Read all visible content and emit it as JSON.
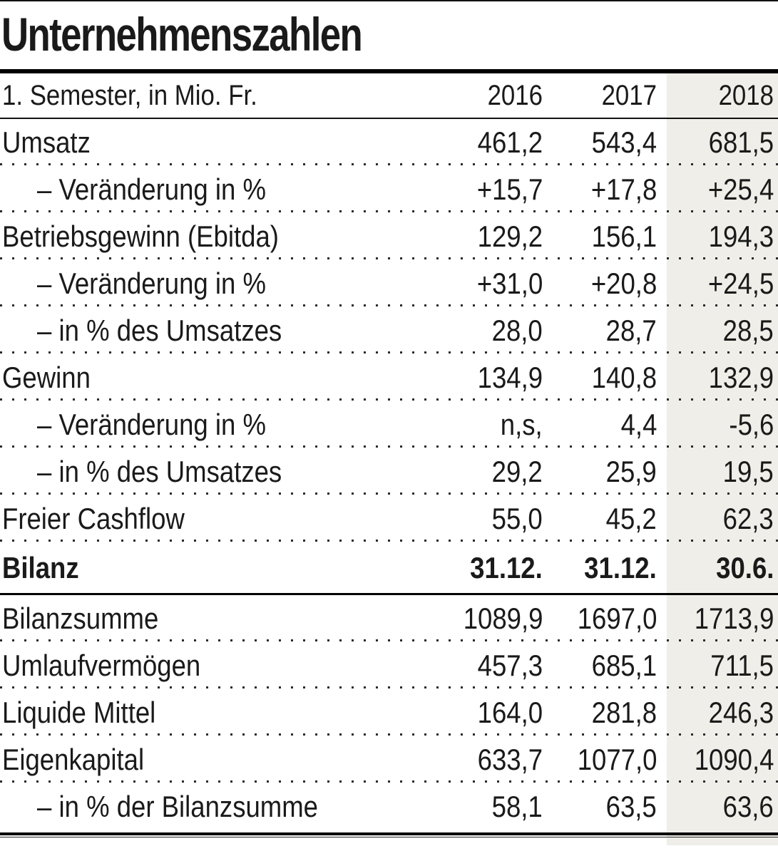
{
  "title": "Unternehmenszahlen",
  "colors": {
    "highlight_column": "#efeee8",
    "text": "#1a1a1a",
    "rule": "#000000",
    "dotted_separator": "#2b2b2b"
  },
  "table": {
    "unit_label": "1. Semester, in Mio. Fr.",
    "years": [
      "2016",
      "2017",
      "2018"
    ],
    "highlighted_year": "2018",
    "sections": [
      {
        "rows": [
          {
            "label": "Umsatz",
            "indent": false,
            "values": [
              "461,2",
              "543,4",
              "681,5"
            ]
          },
          {
            "label": "– Veränderung in %",
            "indent": true,
            "values": [
              "+15,7",
              "+17,8",
              "+25,4"
            ]
          },
          {
            "label": "Betriebsgewinn (Ebitda)",
            "indent": false,
            "values": [
              "129,2",
              "156,1",
              "194,3"
            ]
          },
          {
            "label": "– Veränderung in %",
            "indent": true,
            "values": [
              "+31,0",
              "+20,8",
              "+24,5"
            ]
          },
          {
            "label": "– in % des Umsatzes",
            "indent": true,
            "values": [
              "28,0",
              "28,7",
              "28,5"
            ]
          },
          {
            "label": "Gewinn",
            "indent": false,
            "values": [
              "134,9",
              "140,8",
              "132,9"
            ]
          },
          {
            "label": "– Veränderung in %",
            "indent": true,
            "values": [
              "n,s,",
              "4,4",
              "-5,6"
            ]
          },
          {
            "label": "– in % des Umsatzes",
            "indent": true,
            "values": [
              "29,2",
              "25,9",
              "19,5"
            ]
          },
          {
            "label": "Freier Cashflow",
            "indent": false,
            "values": [
              "55,0",
              "45,2",
              "62,3"
            ]
          }
        ]
      },
      {
        "header": {
          "label": "Bilanz",
          "values": [
            "31.12.",
            "31.12.",
            "30.6."
          ]
        },
        "rows": [
          {
            "label": "Bilanzsumme",
            "indent": false,
            "values": [
              "1089,9",
              "1697,0",
              "1713,9"
            ]
          },
          {
            "label": "Umlaufvermögen",
            "indent": false,
            "values": [
              "457,3",
              "685,1",
              "711,5"
            ]
          },
          {
            "label": "Liquide Mittel",
            "indent": false,
            "values": [
              "164,0",
              "281,8",
              "246,3"
            ]
          },
          {
            "label": "Eigenkapital",
            "indent": false,
            "values": [
              "633,7",
              "1077,0",
              "1090,4"
            ]
          },
          {
            "label": "– in % der Bilanzsumme",
            "indent": true,
            "values": [
              "58,1",
              "63,5",
              "63,6"
            ]
          }
        ]
      }
    ]
  },
  "chart_data": {
    "type": "table",
    "title": "Unternehmenszahlen",
    "subtitle": "1. Semester, in Mio. Fr.",
    "columns": [
      "",
      "2016",
      "2017",
      "2018"
    ],
    "highlighted_column": "2018",
    "rows": [
      [
        "Umsatz",
        "461,2",
        "543,4",
        "681,5"
      ],
      [
        "– Veränderung in %",
        "+15,7",
        "+17,8",
        "+25,4"
      ],
      [
        "Betriebsgewinn (Ebitda)",
        "129,2",
        "156,1",
        "194,3"
      ],
      [
        "– Veränderung in %",
        "+31,0",
        "+20,8",
        "+24,5"
      ],
      [
        "– in % des Umsatzes",
        "28,0",
        "28,7",
        "28,5"
      ],
      [
        "Gewinn",
        "134,9",
        "140,8",
        "132,9"
      ],
      [
        "– Veränderung in %",
        "n,s,",
        "4,4",
        "-5,6"
      ],
      [
        "– in % des Umsatzes",
        "29,2",
        "25,9",
        "19,5"
      ],
      [
        "Freier Cashflow",
        "55,0",
        "45,2",
        "62,3"
      ],
      [
        "Bilanz",
        "31.12.",
        "31.12.",
        "30.6."
      ],
      [
        "Bilanzsumme",
        "1089,9",
        "1697,0",
        "1713,9"
      ],
      [
        "Umlaufvermögen",
        "457,3",
        "685,1",
        "711,5"
      ],
      [
        "Liquide Mittel",
        "164,0",
        "281,8",
        "246,3"
      ],
      [
        "Eigenkapital",
        "633,7",
        "1077,0",
        "1090,4"
      ],
      [
        "– in % der Bilanzsumme",
        "58,1",
        "63,5",
        "63,6"
      ]
    ]
  }
}
